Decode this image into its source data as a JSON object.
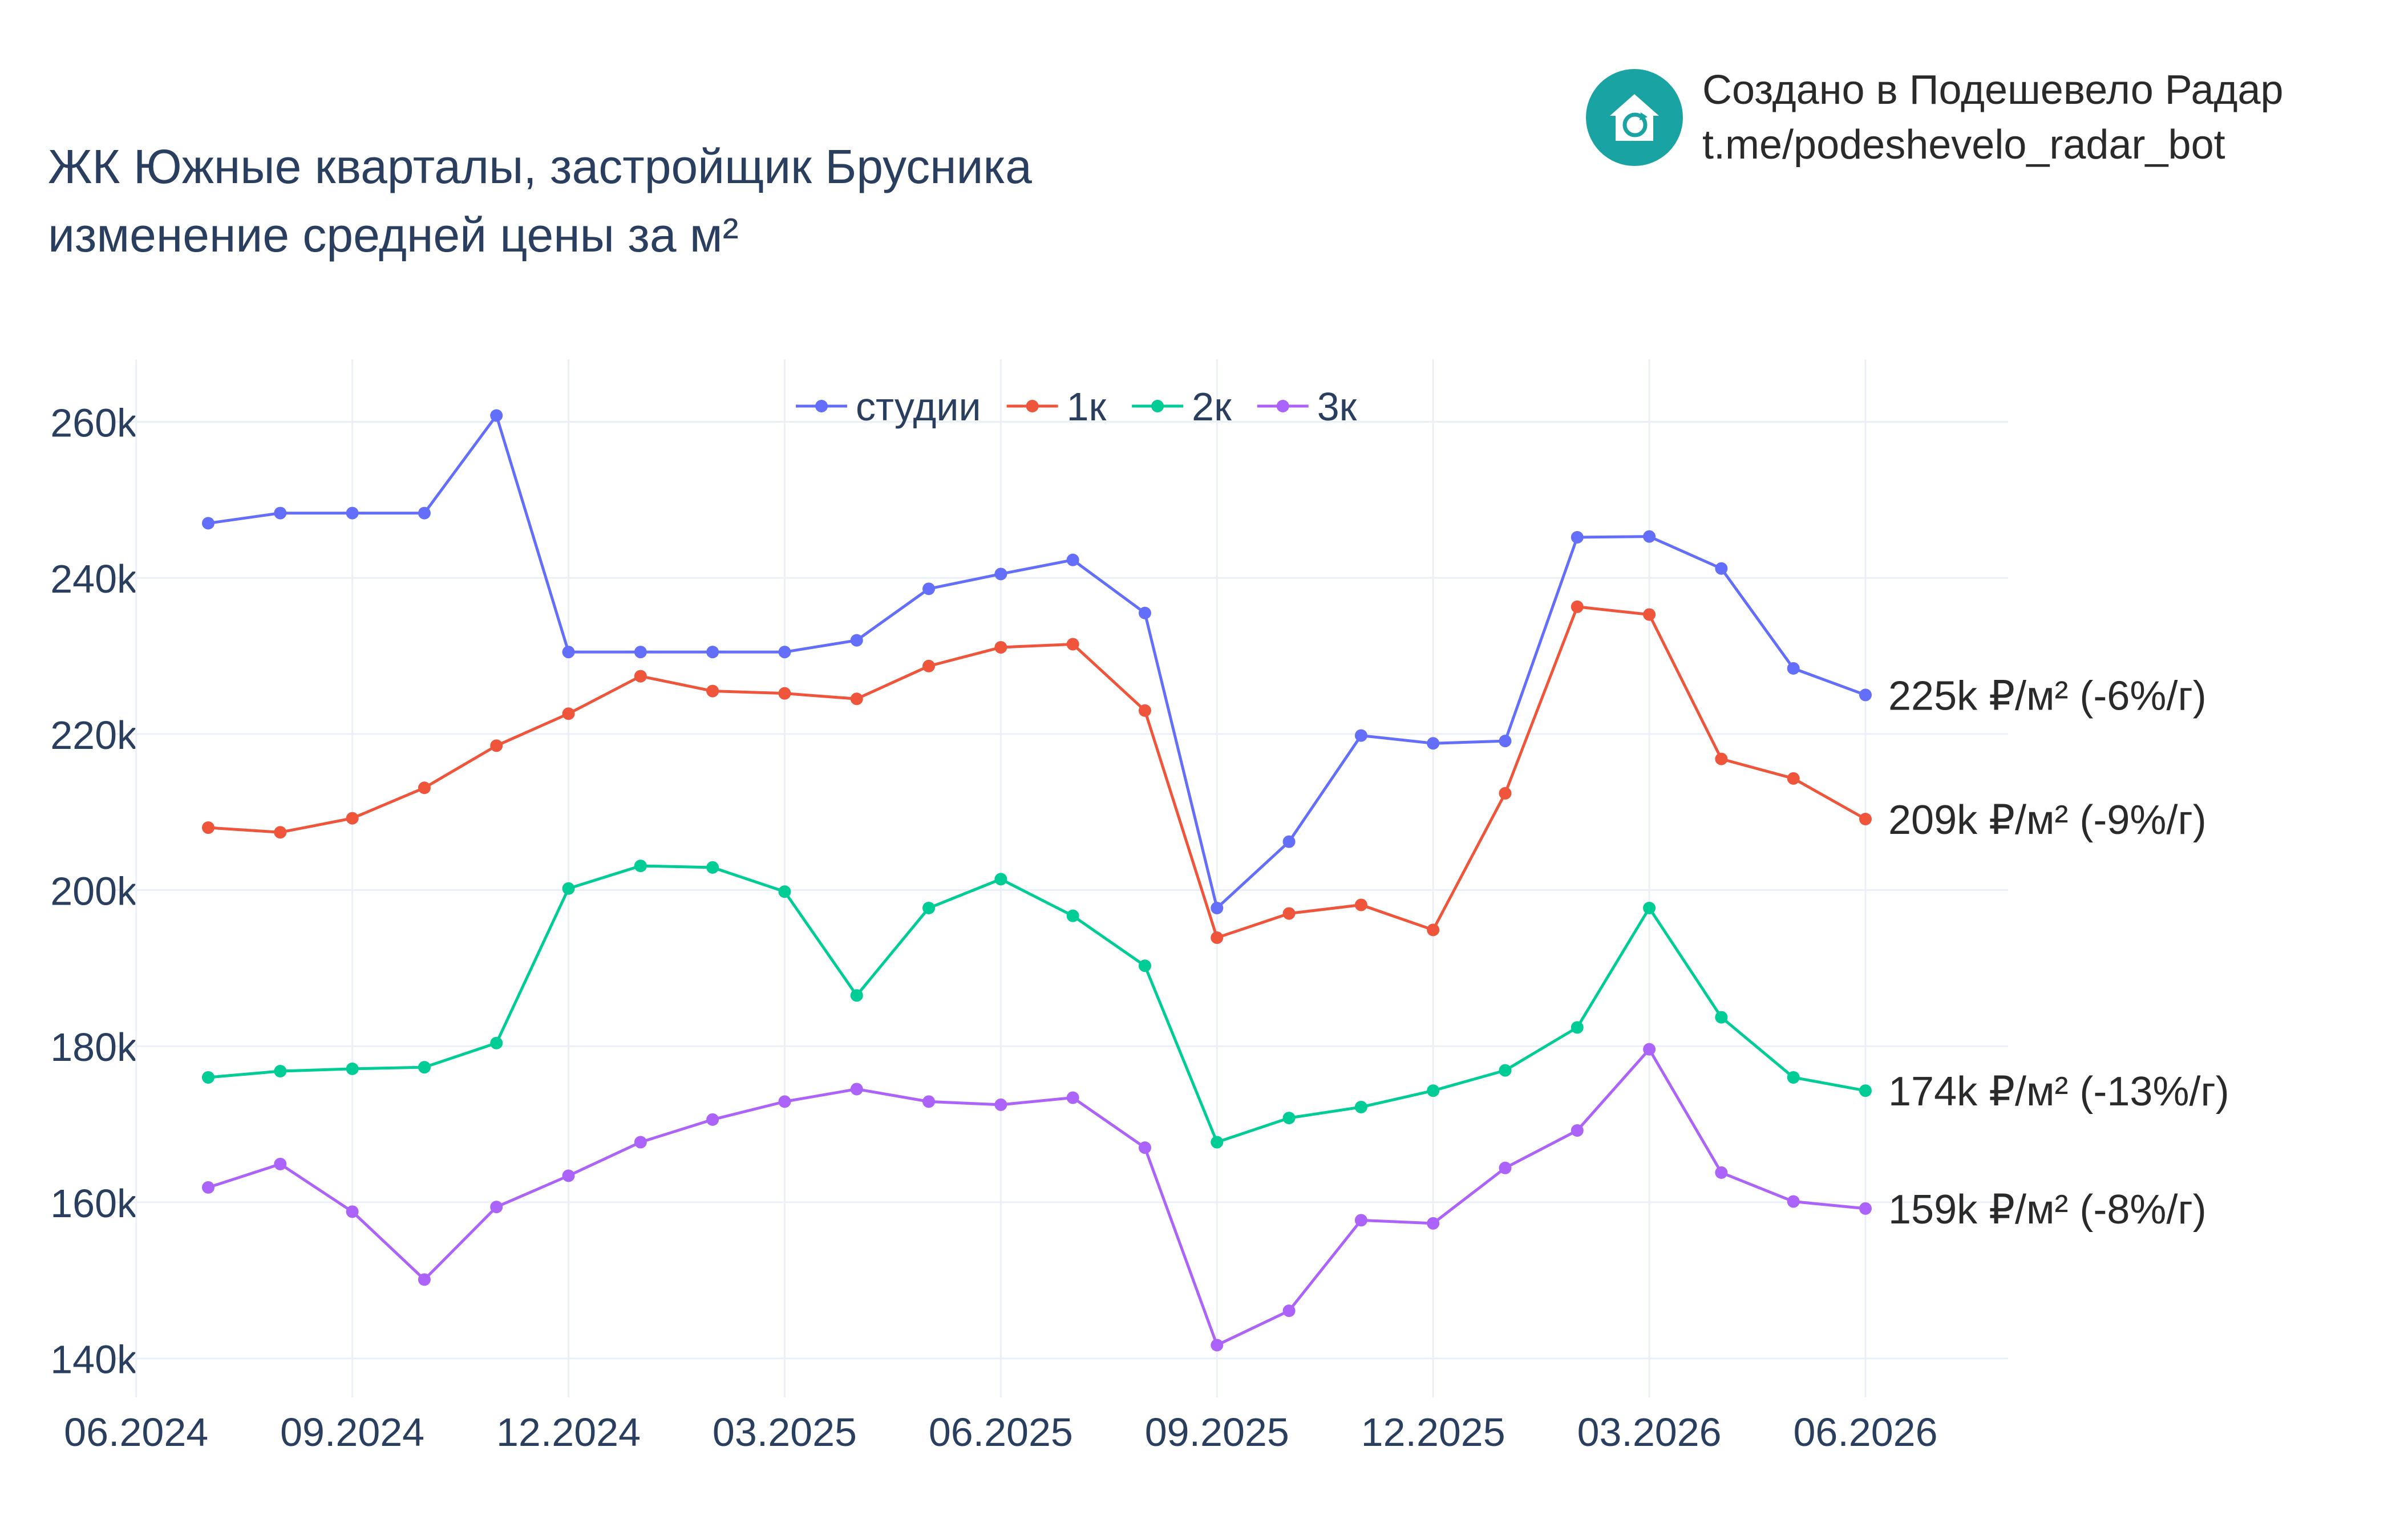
{
  "title": {
    "line1": "ЖК Южные кварталы, застройщик Брусника",
    "line2": "изменение средней цены за м²"
  },
  "brand": {
    "line1": "Создано в Подешевело Радар",
    "line2": "t.me/podeshevelo_radar_bot",
    "logo_icon": "house-refresh-icon",
    "logo_color": "#1aa3a3"
  },
  "chart_data": {
    "type": "line",
    "x": [
      "07.2024",
      "08.2024",
      "09.2024",
      "10.2024",
      "11.2024",
      "12.2024",
      "01.2025",
      "02.2025",
      "03.2025",
      "04.2025",
      "05.2025",
      "06.2025",
      "07.2025",
      "08.2025",
      "09.2025",
      "10.2025",
      "11.2025",
      "12.2025",
      "01.2026",
      "02.2026",
      "03.2026",
      "04.2026",
      "05.2026",
      "06.2026"
    ],
    "x_ticks": [
      "06.2024",
      "09.2024",
      "12.2024",
      "03.2025",
      "06.2025",
      "09.2025",
      "12.2025",
      "03.2026",
      "06.2026"
    ],
    "y_ticks": [
      "140k",
      "160k",
      "180k",
      "200k",
      "220k",
      "240k",
      "260k"
    ],
    "ylim": [
      135000,
      268000
    ],
    "grid": true,
    "legend_position": "top-center",
    "series": [
      {
        "name": "студии",
        "color": "#636efa",
        "end_label": "225k ₽/м² (-6%/г)",
        "values": [
          247000,
          248300,
          248300,
          248300,
          260800,
          230500,
          230500,
          230500,
          230500,
          232000,
          238600,
          240500,
          242300,
          235500,
          197700,
          206200,
          219800,
          218800,
          219100,
          245200,
          245300,
          241200,
          228400,
          225000
        ]
      },
      {
        "name": "1к",
        "color": "#ef553b",
        "end_label": "209k ₽/м² (-9%/г)",
        "values": [
          208000,
          207400,
          209200,
          213100,
          218500,
          222600,
          227400,
          225500,
          225200,
          224500,
          228700,
          231100,
          231500,
          223000,
          193900,
          197000,
          198100,
          194900,
          212400,
          236300,
          235300,
          216800,
          214300,
          209100
        ]
      },
      {
        "name": "2к",
        "color": "#00cc96",
        "end_label": "174k ₽/м² (-13%/г)",
        "values": [
          176000,
          176800,
          177100,
          177300,
          180400,
          200200,
          203100,
          202900,
          199800,
          186500,
          197700,
          201400,
          196700,
          190300,
          167700,
          170800,
          172200,
          174300,
          176900,
          182400,
          197700,
          183700,
          176000,
          174300
        ]
      },
      {
        "name": "3к",
        "color": "#ab63fa",
        "end_label": "159k ₽/м² (-8%/г)",
        "values": [
          161900,
          164900,
          158800,
          150100,
          159400,
          163400,
          167700,
          170600,
          172900,
          174500,
          172900,
          172500,
          173400,
          167000,
          141700,
          146100,
          157700,
          157300,
          164400,
          169200,
          179600,
          163800,
          160100,
          159200
        ]
      }
    ]
  }
}
